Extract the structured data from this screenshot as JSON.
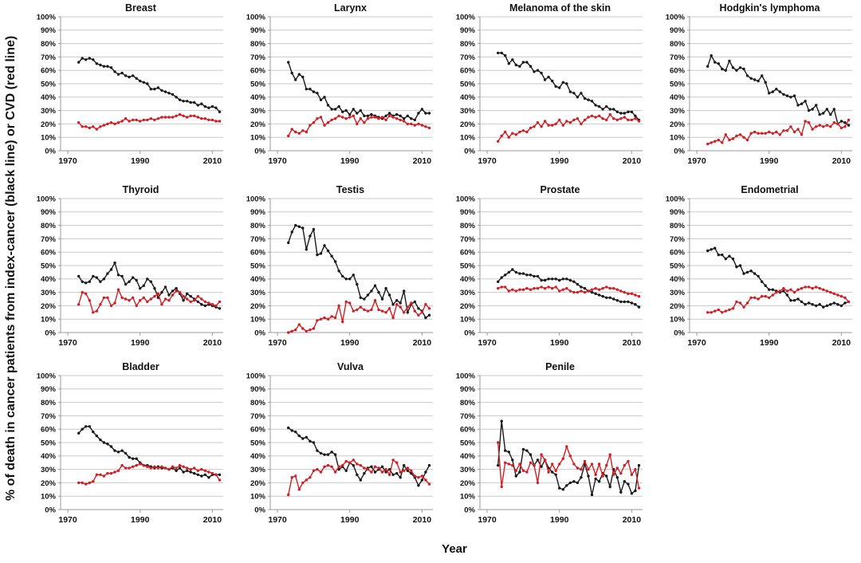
{
  "figure": {
    "ylabel": "% of death in cancer patients from index-cancer (black line) or CVD (red line)",
    "xlabel": "Year"
  },
  "legend": {
    "black_line": "index-cancer",
    "red_line": "CVD"
  },
  "colors": {
    "index_cancer": "#1a1a1a",
    "cvd": "#d21f26",
    "gridline": "#c9c9c9",
    "axis": "#9a9a9a",
    "tick_text": "#111111"
  },
  "axes": {
    "ylim": [
      0,
      100
    ],
    "y_tick_step": 10,
    "y_tick_suffix": "%",
    "xlim": [
      1968,
      2013
    ],
    "x_ticks": [
      1970,
      1990,
      2010
    ],
    "x_start_year": 1973,
    "x_step_years": 1,
    "grid": "horizontal"
  },
  "chart_data": [
    {
      "type": "line",
      "title": "Breast",
      "series": [
        {
          "name": "index-cancer (black line)",
          "color_key": "index_cancer",
          "values": [
            66,
            69,
            68,
            69,
            68,
            65,
            64,
            63,
            63,
            62,
            59,
            57,
            58,
            56,
            55,
            56,
            54,
            52,
            51,
            50,
            46,
            46,
            47,
            45,
            44,
            43,
            42,
            40,
            38,
            37,
            37,
            36,
            36,
            34,
            35,
            33,
            32,
            33,
            32,
            29
          ]
        },
        {
          "name": "CVD (red line)",
          "color_key": "cvd",
          "values": [
            21,
            18,
            18,
            17,
            18,
            16,
            18,
            19,
            20,
            21,
            20,
            21,
            22,
            24,
            22,
            23,
            23,
            22,
            23,
            23,
            24,
            23,
            24,
            25,
            25,
            25,
            25,
            26,
            27,
            26,
            25,
            26,
            26,
            25,
            24,
            24,
            23,
            23,
            22,
            22
          ]
        }
      ]
    },
    {
      "type": "line",
      "title": "Larynx",
      "series": [
        {
          "name": "index-cancer (black line)",
          "color_key": "index_cancer",
          "values": [
            66,
            58,
            53,
            57,
            55,
            46,
            46,
            44,
            43,
            38,
            40,
            34,
            31,
            31,
            33,
            29,
            30,
            27,
            31,
            28,
            30,
            26,
            26,
            27,
            26,
            25,
            24,
            26,
            28,
            26,
            27,
            26,
            24,
            26,
            24,
            23,
            28,
            31,
            28,
            28
          ]
        },
        {
          "name": "CVD (red line)",
          "color_key": "cvd",
          "values": [
            11,
            16,
            14,
            13,
            15,
            14,
            19,
            21,
            24,
            25,
            19,
            21,
            23,
            24,
            26,
            25,
            24,
            25,
            26,
            20,
            24,
            21,
            24,
            25,
            25,
            24,
            25,
            23,
            26,
            25,
            24,
            23,
            22,
            20,
            20,
            19,
            20,
            19,
            18,
            17
          ]
        }
      ]
    },
    {
      "type": "line",
      "title": "Melanoma of the skin",
      "series": [
        {
          "name": "index-cancer (black line)",
          "color_key": "index_cancer",
          "values": [
            73,
            73,
            71,
            65,
            68,
            64,
            63,
            66,
            66,
            63,
            59,
            60,
            58,
            53,
            55,
            52,
            48,
            47,
            51,
            50,
            44,
            43,
            40,
            43,
            39,
            38,
            37,
            34,
            33,
            31,
            33,
            31,
            31,
            29,
            28,
            28,
            29,
            29,
            26,
            23
          ]
        },
        {
          "name": "CVD (red line)",
          "color_key": "cvd",
          "values": [
            7,
            11,
            14,
            10,
            13,
            12,
            14,
            15,
            14,
            17,
            18,
            21,
            18,
            22,
            19,
            19,
            20,
            23,
            19,
            22,
            21,
            23,
            24,
            20,
            23,
            25,
            26,
            25,
            26,
            24,
            23,
            27,
            24,
            23,
            24,
            25,
            23,
            23,
            24,
            22
          ]
        }
      ]
    },
    {
      "type": "line",
      "title": "Hodgkin's lymphoma",
      "series": [
        {
          "name": "index-cancer (black line)",
          "color_key": "index_cancer",
          "values": [
            63,
            71,
            66,
            65,
            61,
            60,
            67,
            62,
            60,
            62,
            61,
            56,
            54,
            53,
            52,
            56,
            51,
            43,
            44,
            46,
            44,
            42,
            41,
            40,
            41,
            34,
            35,
            37,
            30,
            31,
            34,
            27,
            28,
            31,
            27,
            31,
            20,
            22,
            21,
            19
          ]
        },
        {
          "name": "CVD (red line)",
          "color_key": "cvd",
          "values": [
            5,
            6,
            7,
            8,
            6,
            12,
            8,
            9,
            11,
            12,
            10,
            8,
            13,
            14,
            13,
            13,
            13,
            14,
            13,
            14,
            12,
            15,
            15,
            18,
            14,
            16,
            12,
            22,
            21,
            16,
            18,
            19,
            18,
            19,
            18,
            21,
            20,
            17,
            18,
            23
          ]
        }
      ]
    },
    {
      "type": "line",
      "title": "Thyroid",
      "series": [
        {
          "name": "index-cancer (black line)",
          "color_key": "index_cancer",
          "values": [
            42,
            38,
            37,
            38,
            42,
            41,
            38,
            40,
            44,
            47,
            52,
            43,
            42,
            36,
            38,
            41,
            39,
            33,
            35,
            40,
            38,
            33,
            26,
            30,
            34,
            28,
            31,
            33,
            29,
            24,
            29,
            27,
            25,
            23,
            21,
            20,
            21,
            20,
            19,
            18
          ]
        },
        {
          "name": "CVD (red line)",
          "color_key": "cvd",
          "values": [
            21,
            30,
            29,
            24,
            15,
            16,
            21,
            26,
            26,
            20,
            22,
            32,
            26,
            25,
            24,
            26,
            20,
            24,
            26,
            23,
            25,
            27,
            29,
            21,
            25,
            24,
            28,
            31,
            30,
            27,
            25,
            23,
            24,
            27,
            25,
            23,
            22,
            21,
            20,
            23
          ]
        }
      ]
    },
    {
      "type": "line",
      "title": "Testis",
      "series": [
        {
          "name": "index-cancer (black line)",
          "color_key": "index_cancer",
          "values": [
            67,
            75,
            80,
            79,
            78,
            62,
            72,
            77,
            58,
            59,
            65,
            61,
            57,
            53,
            46,
            42,
            40,
            40,
            43,
            36,
            26,
            25,
            28,
            31,
            35,
            30,
            25,
            33,
            28,
            21,
            24,
            22,
            31,
            15,
            21,
            23,
            18,
            16,
            11,
            13
          ]
        },
        {
          "name": "CVD (red line)",
          "color_key": "cvd",
          "values": [
            0,
            1,
            2,
            6,
            3,
            1,
            2,
            3,
            9,
            10,
            11,
            10,
            12,
            11,
            20,
            8,
            23,
            22,
            16,
            17,
            19,
            17,
            16,
            17,
            24,
            17,
            16,
            15,
            18,
            11,
            21,
            19,
            15,
            19,
            22,
            16,
            13,
            15,
            21,
            18
          ]
        }
      ]
    },
    {
      "type": "line",
      "title": "Prostate",
      "series": [
        {
          "name": "index-cancer (black line)",
          "color_key": "index_cancer",
          "values": [
            38,
            41,
            43,
            45,
            47,
            45,
            44,
            44,
            43,
            43,
            42,
            42,
            39,
            39,
            40,
            40,
            40,
            39,
            40,
            40,
            39,
            38,
            36,
            34,
            33,
            31,
            30,
            29,
            28,
            27,
            26,
            26,
            25,
            24,
            23,
            23,
            23,
            22,
            21,
            19
          ]
        },
        {
          "name": "CVD (red line)",
          "color_key": "cvd",
          "values": [
            33,
            34,
            34,
            31,
            32,
            31,
            32,
            32,
            33,
            32,
            33,
            33,
            34,
            33,
            34,
            33,
            34,
            31,
            32,
            33,
            31,
            30,
            30,
            31,
            30,
            31,
            32,
            33,
            32,
            33,
            34,
            33,
            33,
            32,
            31,
            30,
            29,
            29,
            28,
            27
          ]
        }
      ]
    },
    {
      "type": "line",
      "title": "Endometrial",
      "series": [
        {
          "name": "index-cancer (black line)",
          "color_key": "index_cancer",
          "values": [
            61,
            62,
            63,
            58,
            58,
            55,
            57,
            55,
            49,
            50,
            44,
            45,
            46,
            44,
            42,
            38,
            35,
            32,
            32,
            31,
            30,
            31,
            28,
            24,
            24,
            25,
            23,
            21,
            22,
            21,
            20,
            21,
            19,
            20,
            21,
            22,
            21,
            20,
            22,
            23
          ]
        },
        {
          "name": "CVD (red line)",
          "color_key": "cvd",
          "values": [
            15,
            15,
            16,
            17,
            15,
            16,
            17,
            18,
            23,
            22,
            19,
            22,
            26,
            26,
            25,
            27,
            27,
            26,
            28,
            30,
            31,
            33,
            31,
            32,
            30,
            32,
            33,
            34,
            34,
            33,
            34,
            33,
            32,
            31,
            30,
            29,
            28,
            27,
            26,
            23
          ]
        }
      ]
    },
    {
      "type": "line",
      "title": "Bladder",
      "series": [
        {
          "name": "index-cancer (black line)",
          "color_key": "index_cancer",
          "values": [
            57,
            60,
            62,
            62,
            58,
            55,
            52,
            50,
            49,
            47,
            44,
            43,
            44,
            42,
            39,
            38,
            38,
            35,
            33,
            33,
            32,
            31,
            32,
            31,
            31,
            30,
            31,
            29,
            31,
            28,
            29,
            28,
            27,
            26,
            25,
            26,
            24,
            26,
            26,
            26
          ]
        },
        {
          "name": "CVD (red line)",
          "color_key": "cvd",
          "values": [
            20,
            20,
            19,
            20,
            21,
            26,
            26,
            25,
            27,
            27,
            28,
            29,
            33,
            31,
            31,
            32,
            33,
            34,
            33,
            32,
            31,
            32,
            31,
            32,
            31,
            30,
            32,
            31,
            33,
            32,
            31,
            30,
            31,
            29,
            30,
            29,
            28,
            27,
            26,
            22
          ]
        }
      ]
    },
    {
      "type": "line",
      "title": "Vulva",
      "series": [
        {
          "name": "index-cancer (black line)",
          "color_key": "index_cancer",
          "values": [
            61,
            59,
            58,
            55,
            53,
            54,
            51,
            50,
            44,
            42,
            41,
            41,
            43,
            41,
            30,
            32,
            29,
            35,
            33,
            26,
            22,
            27,
            31,
            32,
            28,
            30,
            32,
            28,
            30,
            26,
            27,
            24,
            33,
            29,
            27,
            24,
            18,
            22,
            28,
            33
          ]
        },
        {
          "name": "CVD (red line)",
          "color_key": "cvd",
          "values": [
            11,
            24,
            25,
            15,
            20,
            22,
            24,
            29,
            30,
            28,
            32,
            33,
            32,
            28,
            32,
            33,
            36,
            35,
            37,
            34,
            33,
            31,
            30,
            28,
            32,
            31,
            28,
            30,
            26,
            37,
            35,
            28,
            29,
            31,
            29,
            25,
            24,
            25,
            22,
            19
          ]
        }
      ]
    },
    {
      "type": "line",
      "title": "Penile",
      "series": [
        {
          "name": "index-cancer (black line)",
          "color_key": "index_cancer",
          "values": [
            33,
            66,
            44,
            43,
            37,
            25,
            28,
            45,
            44,
            41,
            33,
            37,
            32,
            37,
            31,
            28,
            26,
            16,
            15,
            18,
            20,
            21,
            20,
            24,
            34,
            25,
            11,
            23,
            21,
            27,
            25,
            17,
            30,
            24,
            13,
            21,
            19,
            12,
            14,
            33
          ]
        },
        {
          "name": "CVD (red line)",
          "color_key": "cvd",
          "values": [
            50,
            17,
            35,
            34,
            33,
            29,
            34,
            29,
            28,
            35,
            33,
            20,
            41,
            37,
            28,
            34,
            29,
            34,
            38,
            47,
            40,
            34,
            31,
            30,
            36,
            30,
            34,
            26,
            34,
            25,
            33,
            41,
            26,
            31,
            27,
            33,
            36,
            26,
            30,
            16
          ]
        }
      ]
    }
  ]
}
